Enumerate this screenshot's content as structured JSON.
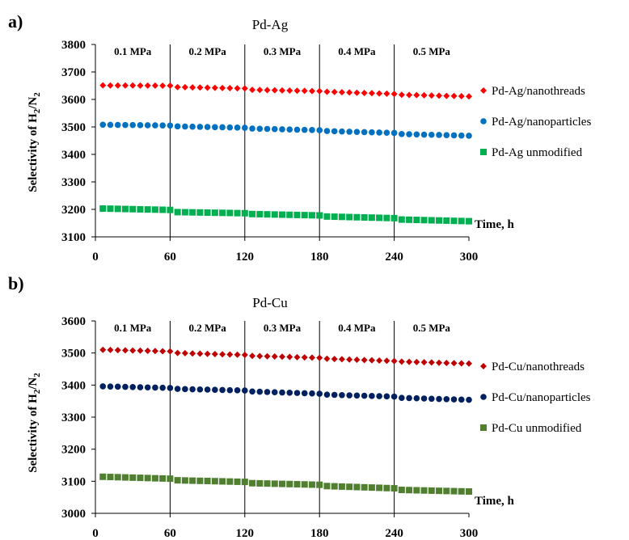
{
  "chart_data": [
    {
      "type": "scatter",
      "panel_label": "a)",
      "title": "Pd-Ag",
      "ylabel": "Selectivity of H2/N2",
      "xlabel": "Time, h",
      "xlim": [
        0,
        300
      ],
      "ylim": [
        3100,
        3800
      ],
      "xticks": [
        0,
        60,
        120,
        180,
        240,
        300
      ],
      "yticks": [
        3100,
        3200,
        3300,
        3400,
        3500,
        3600,
        3700,
        3800
      ],
      "pressure_labels": [
        "0.1 MPa",
        "0.2 MPa",
        "0.3 MPa",
        "0.4 MPa",
        "0.5 MPa"
      ],
      "segment_boundaries": [
        60,
        120,
        180,
        240
      ],
      "legend_position": "right",
      "series": [
        {
          "name": "Pd-Ag/nanothreads",
          "marker": "diamond",
          "color": "#ff0000",
          "segments": [
            [
              3651,
              3650
            ],
            [
              3645,
              3640
            ],
            [
              3635,
              3630
            ],
            [
              3628,
              3620
            ],
            [
              3617,
              3611
            ]
          ]
        },
        {
          "name": "Pd-Ag/nanoparticles",
          "marker": "circle",
          "color": "#0070c0",
          "segments": [
            [
              3508,
              3505
            ],
            [
              3502,
              3497
            ],
            [
              3494,
              3488
            ],
            [
              3485,
              3478
            ],
            [
              3474,
              3468
            ]
          ]
        },
        {
          "name": "Pd-Ag unmodified",
          "marker": "square",
          "color": "#00b050",
          "segments": [
            [
              3203,
              3198
            ],
            [
              3190,
              3186
            ],
            [
              3183,
              3178
            ],
            [
              3174,
              3168
            ],
            [
              3163,
              3157
            ]
          ]
        }
      ]
    },
    {
      "type": "scatter",
      "panel_label": "b)",
      "title": "Pd-Cu",
      "ylabel": "Selectivity of H2/N2",
      "xlabel": "Time, h",
      "xlim": [
        0,
        300
      ],
      "ylim": [
        3000,
        3600
      ],
      "xticks": [
        0,
        60,
        120,
        180,
        240,
        300
      ],
      "yticks": [
        3000,
        3100,
        3200,
        3300,
        3400,
        3500,
        3600
      ],
      "pressure_labels": [
        "0.1 MPa",
        "0.2 MPa",
        "0.3 MPa",
        "0.4 MPa",
        "0.5 MPa"
      ],
      "segment_boundaries": [
        60,
        120,
        180,
        240
      ],
      "legend_position": "right",
      "series": [
        {
          "name": "Pd-Cu/nanothreads",
          "marker": "diamond",
          "color": "#c00000",
          "segments": [
            [
              3510,
              3505
            ],
            [
              3500,
              3494
            ],
            [
              3491,
              3485
            ],
            [
              3482,
              3475
            ],
            [
              3473,
              3467
            ]
          ]
        },
        {
          "name": "Pd-Cu/nanoparticles",
          "marker": "circle",
          "color": "#002060",
          "segments": [
            [
              3396,
              3391
            ],
            [
              3388,
              3383
            ],
            [
              3380,
              3373
            ],
            [
              3370,
              3364
            ],
            [
              3360,
              3354
            ]
          ]
        },
        {
          "name": "Pd-Cu unmodified",
          "marker": "square",
          "color": "#4f7f2f",
          "segments": [
            [
              3114,
              3108
            ],
            [
              3103,
              3098
            ],
            [
              3094,
              3089
            ],
            [
              3085,
              3078
            ],
            [
              3073,
              3068
            ]
          ]
        }
      ]
    }
  ]
}
